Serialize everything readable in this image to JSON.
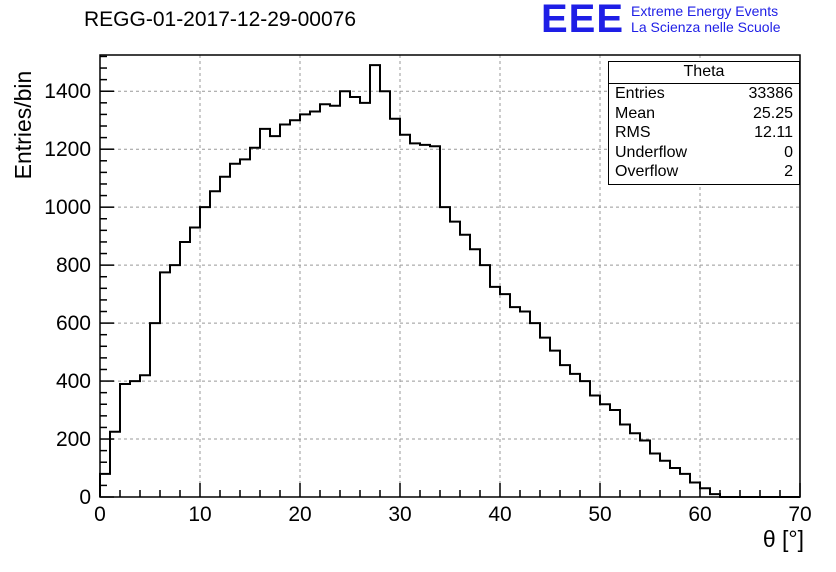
{
  "header": {
    "title": "REGG-01-2017-12-29-00076",
    "logo": {
      "acronym": "EEE",
      "line1": "Extreme Energy Events",
      "line2": "La Scienza nelle Scuole",
      "color": "#1e1ee6"
    }
  },
  "stats": {
    "title": "Theta",
    "rows": [
      {
        "label": "Entries",
        "value": "33386"
      },
      {
        "label": "Mean",
        "value": "25.25"
      },
      {
        "label": "RMS",
        "value": "12.11"
      },
      {
        "label": "Underflow",
        "value": "0"
      },
      {
        "label": "Overflow",
        "value": "2"
      }
    ]
  },
  "chart_data": {
    "type": "bar",
    "subtype": "step-histogram",
    "title": "REGG-01-2017-12-29-00076",
    "xlabel": "θ [°]",
    "ylabel": "Entries/bin",
    "xlim": [
      0,
      70
    ],
    "ylim": [
      0,
      1525
    ],
    "bin_width": 1,
    "x_start": 0,
    "x_ticks": [
      0,
      10,
      20,
      30,
      40,
      50,
      60,
      70
    ],
    "y_ticks": [
      0,
      200,
      400,
      600,
      800,
      1000,
      1200,
      1400
    ],
    "x_minor_per_major": 5,
    "y_minor_per_major": 5,
    "grid": "dashed",
    "legend": "stats-box-top-right",
    "line_color": "#000000",
    "grid_color": "#999999",
    "values": [
      80,
      225,
      390,
      400,
      420,
      600,
      775,
      800,
      880,
      930,
      1000,
      1055,
      1105,
      1150,
      1165,
      1205,
      1270,
      1245,
      1285,
      1300,
      1320,
      1330,
      1355,
      1350,
      1400,
      1380,
      1360,
      1490,
      1400,
      1305,
      1250,
      1220,
      1215,
      1210,
      1000,
      950,
      905,
      855,
      800,
      725,
      700,
      655,
      640,
      600,
      550,
      505,
      455,
      425,
      400,
      350,
      320,
      300,
      250,
      220,
      195,
      150,
      125,
      100,
      80,
      50,
      30,
      10,
      0,
      0,
      0,
      0,
      0,
      0,
      0,
      0
    ]
  }
}
